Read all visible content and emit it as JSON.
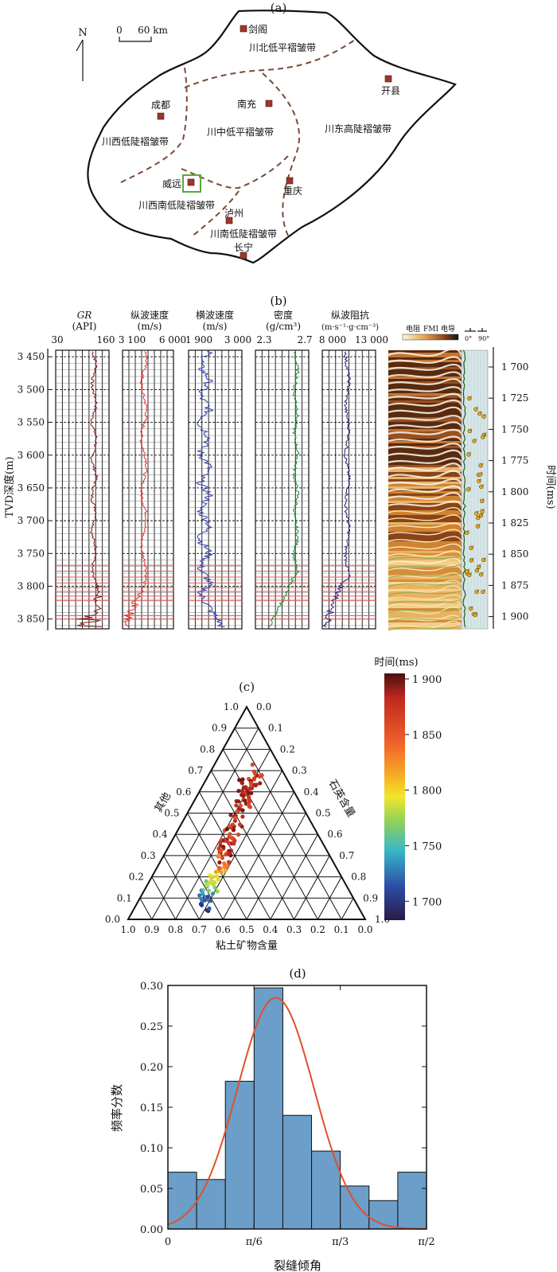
{
  "panel_a": {
    "label": "(a)",
    "north": "N",
    "scale_zero": "0",
    "scale_text": "60 km",
    "cities": [
      {
        "name": "剑阁"
      },
      {
        "name": "开县"
      },
      {
        "name": "成都"
      },
      {
        "name": "南充"
      },
      {
        "name": "威远"
      },
      {
        "name": "重庆"
      },
      {
        "name": "泸州"
      },
      {
        "name": "长宁"
      }
    ],
    "zones": [
      {
        "name": "川北低平褶皱带"
      },
      {
        "name": "川中低平褶皱带"
      },
      {
        "name": "川西低陡褶皱带"
      },
      {
        "name": "川东高陡褶皱带"
      },
      {
        "name": "川西南低陡褶皱带"
      },
      {
        "name": "川南低陡褶皱带"
      }
    ],
    "colors": {
      "city": "#a0352c",
      "boundary": "#7a4a3a",
      "highlight": "#5aa83c"
    }
  },
  "panel_b": {
    "label": "(b)",
    "depth_axis_label": "TVD深度(m)",
    "depth_ticks": [
      "3 450",
      "3 500",
      "3 550",
      "3 600",
      "3 650",
      "3 700",
      "3 750",
      "3 800",
      "3 850"
    ],
    "time_axis_label": "时间(ms)",
    "time_ticks": [
      "1 700",
      "1 725",
      "1 750",
      "1 775",
      "1 800",
      "1 825",
      "1 850",
      "1 875",
      "1 900"
    ],
    "tracks": [
      {
        "title": "GR",
        "unit": "(API)",
        "min": "30",
        "max": "160",
        "color": "#7a1c1c"
      },
      {
        "title": "纵波速度",
        "unit": "(m/s)",
        "min": "3 100",
        "max": "6 000",
        "color": "#e0302c"
      },
      {
        "title": "横波速度",
        "unit": "(m/s)",
        "min": "1 900",
        "max": "3 000",
        "color": "#2b3aa8"
      },
      {
        "title": "密度",
        "unit": "(g/cm³)",
        "min": "2.3",
        "max": "2.7",
        "color": "#1e8a2a"
      },
      {
        "title": "纵波阻抗",
        "unit": "(m·s⁻¹·g·cm⁻³)",
        "min": "8 000",
        "max": "13 000",
        "color": "#2a1f7a"
      }
    ],
    "fmi_legend": {
      "left": "电阻",
      "mid": "FMI",
      "right": "电导",
      "angle0": "0°",
      "angle90": "90°"
    },
    "colors": {
      "fmi_dark": "#5a2a0e",
      "fmi_mid": "#c9772e",
      "fmi_light": "#f3d9a8",
      "marker": "#e35a5a"
    }
  },
  "panel_c": {
    "label": "(c)",
    "left_axis_label": "其他",
    "right_axis_label": "石英含量",
    "bottom_axis_label": "粘土矿物含量",
    "ticks": [
      "0.0",
      "0.1",
      "0.2",
      "0.3",
      "0.4",
      "0.5",
      "0.6",
      "0.7",
      "0.8",
      "0.9",
      "1.0"
    ],
    "colorbar_title": "时间(ms)",
    "colorbar_ticks": [
      "1 900",
      "1 850",
      "1 800",
      "1 750",
      "1 700"
    ]
  },
  "chart_data": {
    "type": "bar",
    "title": "(d)",
    "xlabel": "裂缝倾角",
    "ylabel": "频率分数",
    "categories": [
      "0–π/18",
      "π/18–π/9",
      "π/9–π/6",
      "π/6–2π/9",
      "2π/9–5π/18",
      "5π/18–π/3",
      "π/3–7π/18",
      "7π/18–4π/9",
      "4π/9–π/2"
    ],
    "values": [
      0.07,
      0.061,
      0.182,
      0.297,
      0.14,
      0.096,
      0.053,
      0.035,
      0.07
    ],
    "xlim": [
      0,
      1.5708
    ],
    "ylim": [
      0,
      0.3
    ],
    "xticks": [
      "0",
      "π/6",
      "π/3",
      "π/2"
    ],
    "yticks": [
      "0.00",
      "0.05",
      "0.10",
      "0.15",
      "0.20",
      "0.25",
      "0.30"
    ],
    "fit": {
      "type": "normal",
      "mean": 0.655,
      "sd": 0.233,
      "peak": 0.285
    },
    "colors": {
      "bar": "#6b9ec8",
      "curve": "#e0502a"
    }
  }
}
